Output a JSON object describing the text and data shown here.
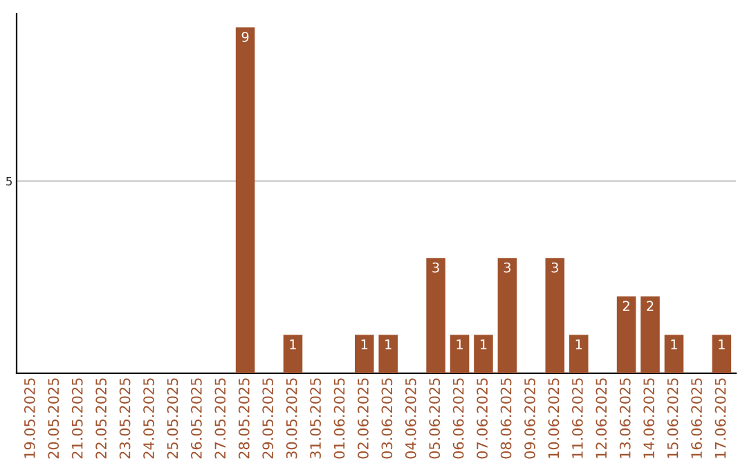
{
  "chart_data": {
    "type": "bar",
    "categories": [
      "19.05.2025",
      "20.05.2025",
      "21.05.2025",
      "22.05.2025",
      "23.05.2025",
      "24.05.2025",
      "25.05.2025",
      "26.05.2025",
      "27.05.2025",
      "28.05.2025",
      "29.05.2025",
      "30.05.2025",
      "31.05.2025",
      "01.06.2025",
      "02.06.2025",
      "03.06.2025",
      "04.06.2025",
      "05.06.2025",
      "06.06.2025",
      "07.06.2025",
      "08.06.2025",
      "09.06.2025",
      "10.06.2025",
      "11.06.2025",
      "12.06.2025",
      "13.06.2025",
      "14.06.2025",
      "15.06.2025",
      "16.06.2025",
      "17.06.2025"
    ],
    "values": [
      0,
      0,
      0,
      0,
      0,
      0,
      0,
      0,
      0,
      9,
      0,
      1,
      0,
      0,
      1,
      1,
      0,
      3,
      1,
      1,
      3,
      0,
      3,
      1,
      0,
      2,
      2,
      1,
      0,
      1
    ],
    "value_labels": [
      null,
      null,
      null,
      null,
      null,
      null,
      null,
      null,
      null,
      "9",
      null,
      "1",
      null,
      null,
      "1",
      "1",
      null,
      "3",
      "1",
      "1",
      "3",
      null,
      "3",
      "1",
      null,
      "2",
      "2",
      "1",
      null,
      "1"
    ],
    "color": "#a0522d",
    "ylim": [
      0,
      9.35
    ],
    "yticks": [
      5
    ],
    "grid": "y"
  }
}
